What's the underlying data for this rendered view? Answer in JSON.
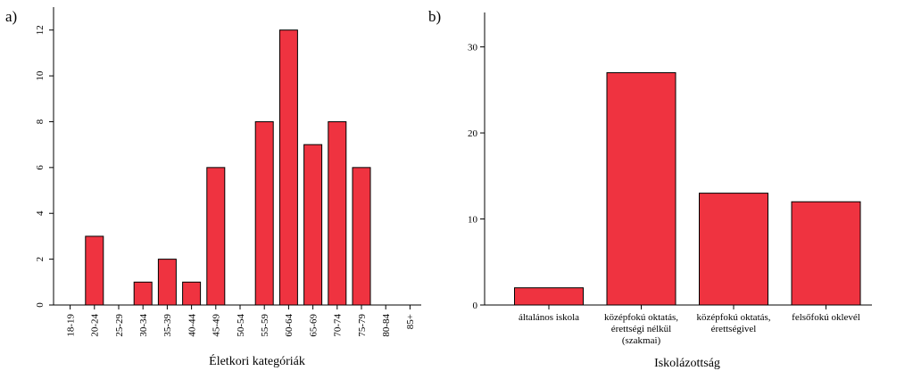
{
  "chart_data": [
    {
      "type": "bar",
      "panel_label": "a)",
      "xlabel": "Életkori kategóriák",
      "ylabel": "",
      "ylim": [
        0,
        13
      ],
      "yticks": [
        0,
        2,
        4,
        6,
        8,
        10,
        12
      ],
      "categories": [
        "18-19",
        "20-24",
        "25-29",
        "30-34",
        "35-39",
        "40-44",
        "45-49",
        "50-54",
        "55-59",
        "60-64",
        "65-69",
        "70-74",
        "75-79",
        "80-84",
        "85+"
      ],
      "values": [
        0,
        3,
        0,
        1,
        2,
        1,
        6,
        0,
        8,
        12,
        7,
        8,
        6,
        0,
        0
      ],
      "bar_color": "#ef3340",
      "grid": false
    },
    {
      "type": "bar",
      "panel_label": "b)",
      "xlabel": "Iskolázottság",
      "ylabel": "",
      "ylim": [
        0,
        34
      ],
      "yticks": [
        0,
        10,
        20,
        30
      ],
      "categories": [
        [
          "általános iskola"
        ],
        [
          "középfokú oktatás,",
          "érettségi nélkül",
          "(szakmai)"
        ],
        [
          "középfokú oktatás,",
          "érettségivel"
        ],
        [
          "felsőfokú oklevél"
        ]
      ],
      "values": [
        2,
        27,
        13,
        12
      ],
      "bar_color": "#ef3340",
      "grid": false
    }
  ]
}
